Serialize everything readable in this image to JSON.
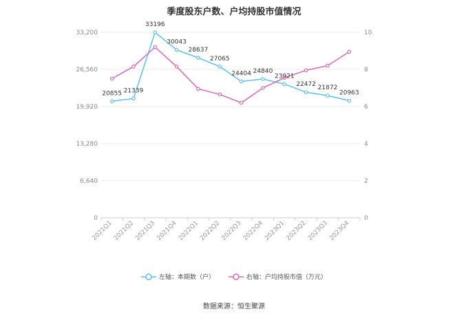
{
  "chart_data": {
    "type": "line",
    "title": "季度股东户数、户均持股市值情况",
    "categories": [
      "2021Q1",
      "2021Q2",
      "2021Q3",
      "2021Q4",
      "2022Q1",
      "2022Q2",
      "2022Q3",
      "2022Q4",
      "2023Q1",
      "2023Q2",
      "2023Q3",
      "2023Q4"
    ],
    "left_axis": {
      "ylim": [
        0,
        33200
      ],
      "ticks": [
        "0",
        "6,640",
        "13,280",
        "19,920",
        "26,560",
        "33,200"
      ],
      "tick_values": [
        0,
        6640,
        13280,
        19920,
        26560,
        33200
      ]
    },
    "right_axis": {
      "ylim": [
        0,
        10
      ],
      "ticks": [
        "0",
        "2",
        "4",
        "6",
        "8",
        "10"
      ],
      "tick_values": [
        0,
        2,
        4,
        6,
        8,
        10
      ]
    },
    "grid": true,
    "series": [
      {
        "name": "左轴：本期数（户）",
        "axis": "left",
        "color": "#5bc0f0",
        "values": [
          20855,
          21339,
          33196,
          30043,
          28637,
          27065,
          24404,
          24840,
          23921,
          22472,
          21872,
          20963
        ],
        "labels": [
          "20855",
          "21339",
          "33196",
          "30043",
          "28637",
          "27065",
          "24404",
          "24840",
          "23921",
          "22472",
          "21872",
          "20963"
        ]
      },
      {
        "name": "右轴：户均持股市值（万元）",
        "axis": "right",
        "color": "#d966b3",
        "values": [
          7.5,
          8.15,
          9.2,
          8.15,
          6.95,
          6.65,
          6.2,
          7.0,
          7.55,
          7.95,
          8.2,
          8.95
        ]
      }
    ],
    "legend_position": "bottom"
  },
  "source": "数据来源：恒生聚源"
}
